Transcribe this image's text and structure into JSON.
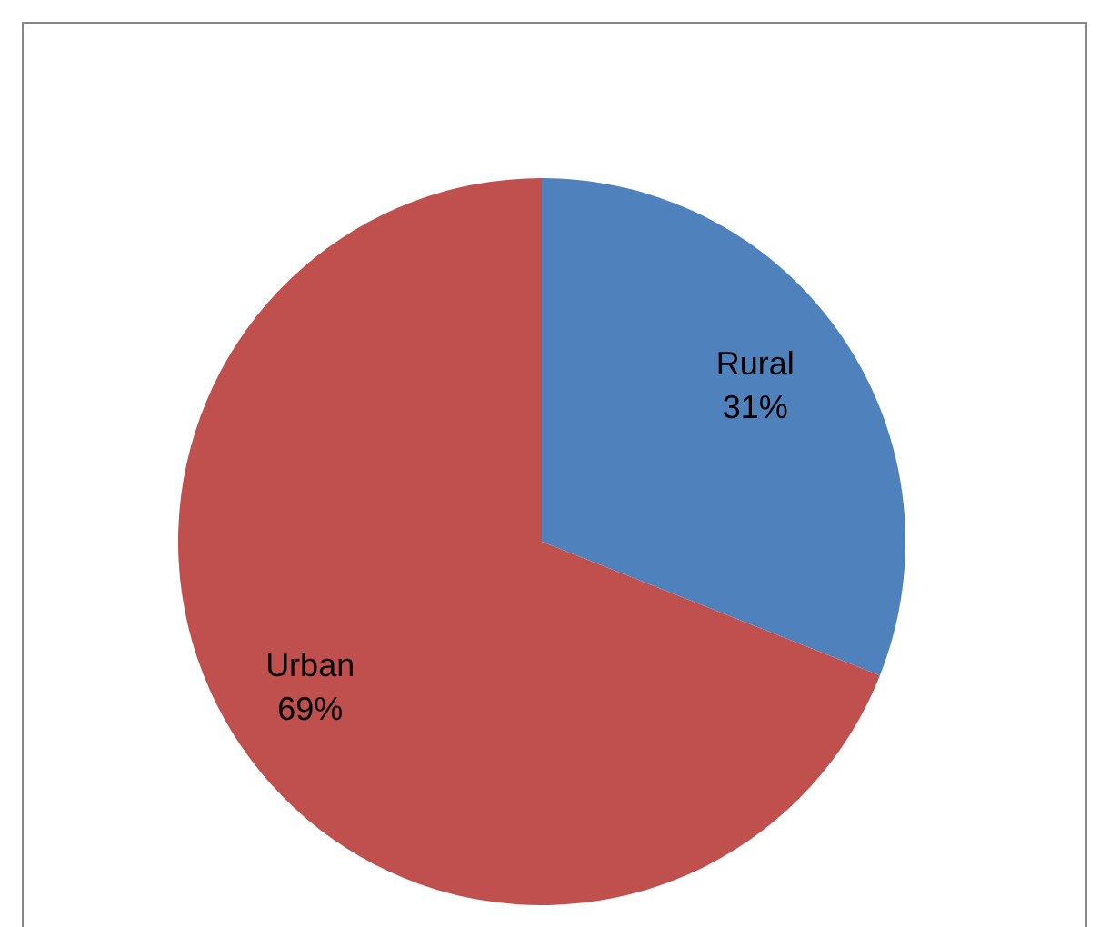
{
  "chart_data": {
    "type": "pie",
    "categories": [
      "Rural",
      "Urban"
    ],
    "values": [
      31,
      69
    ],
    "colors": [
      "#4f81bd",
      "#c0504d"
    ],
    "value_labels": [
      "31%",
      "69%"
    ]
  }
}
